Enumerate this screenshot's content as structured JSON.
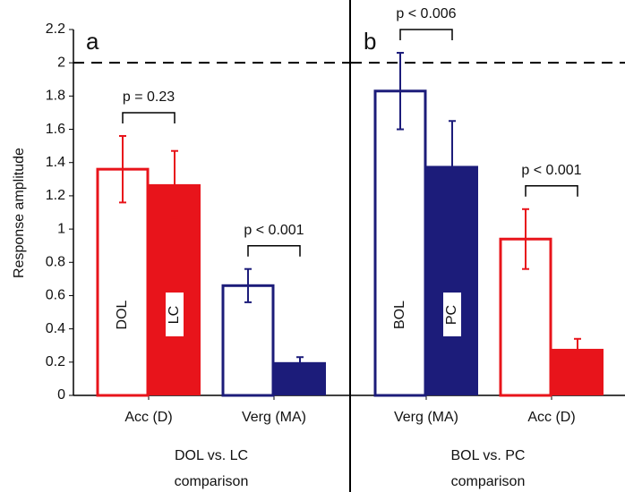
{
  "chart_data": [
    {
      "type": "bar",
      "panel_label": "a",
      "ylabel": "Response amplitude",
      "ylim": [
        0,
        2.2
      ],
      "yticks": [
        0,
        0.2,
        0.4,
        0.6,
        0.8,
        1,
        1.2,
        1.4,
        1.6,
        1.8,
        2,
        2.2
      ],
      "ref_line": 2,
      "categories": [
        "Acc (D)",
        "Verg (MA)"
      ],
      "series": [
        {
          "name": "DOL",
          "style": "outline",
          "colors": [
            "#e8141b",
            "#1c1c7a"
          ],
          "values": [
            1.36,
            0.66
          ],
          "errors": [
            0.2,
            0.1
          ]
        },
        {
          "name": "LC",
          "style": "filled",
          "colors": [
            "#e8141b",
            "#1c1c7a"
          ],
          "values": [
            1.27,
            0.2
          ],
          "errors": [
            0.2,
            0.03
          ]
        }
      ],
      "comparisons": [
        "p = 0.23",
        "p < 0.001"
      ],
      "xlabel": [
        "DOL vs. LC",
        "comparison"
      ]
    },
    {
      "type": "bar",
      "panel_label": "b",
      "ylim": [
        0,
        2.2
      ],
      "ref_line": 2,
      "categories": [
        "Verg (MA)",
        "Acc (D)"
      ],
      "series": [
        {
          "name": "BOL",
          "style": "outline",
          "colors": [
            "#1c1c7a",
            "#e8141b"
          ],
          "values": [
            1.83,
            0.94
          ],
          "errors": [
            0.23,
            0.18
          ]
        },
        {
          "name": "PC",
          "style": "filled",
          "colors": [
            "#1c1c7a",
            "#e8141b"
          ],
          "values": [
            1.38,
            0.28
          ],
          "errors": [
            0.27,
            0.06
          ]
        }
      ],
      "comparisons": [
        "p < 0.006",
        "p < 0.001"
      ],
      "xlabel": [
        "BOL vs. PC",
        "comparison"
      ]
    }
  ]
}
